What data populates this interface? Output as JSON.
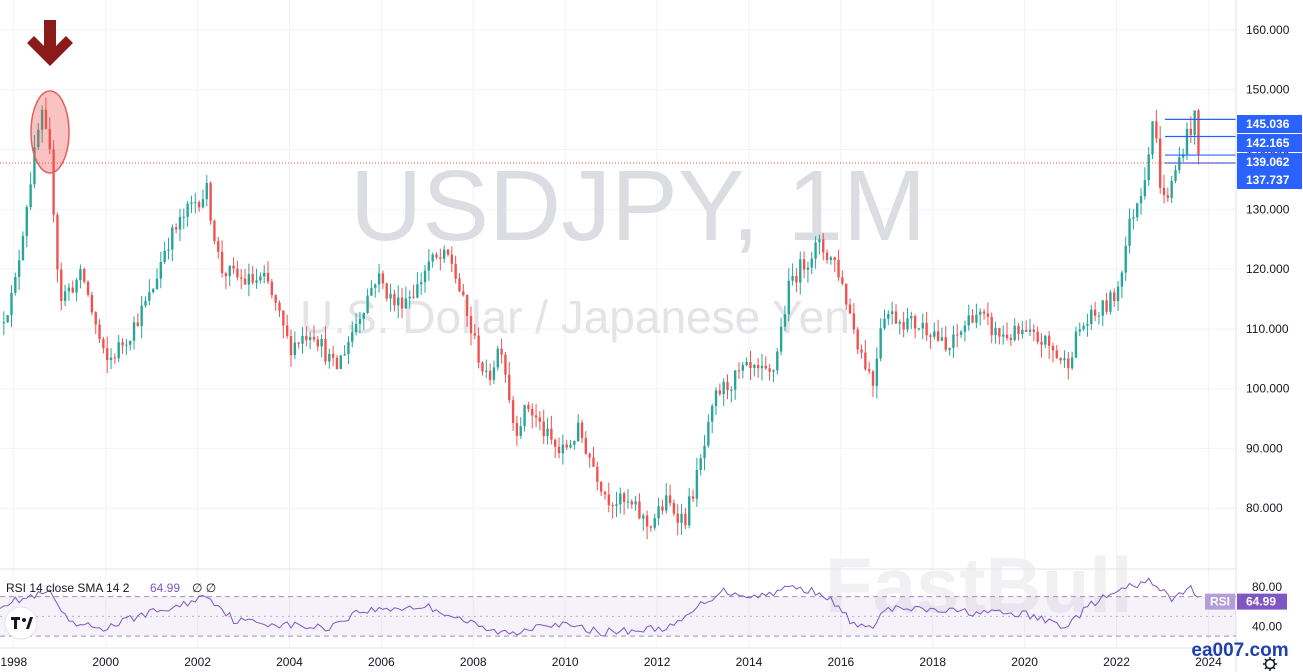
{
  "chart_data": {
    "type": "candlestick",
    "watermark": {
      "symbol": "USDJPY, 1M",
      "description": "U.S. Dollar / Japanese Yen",
      "brand": "FastBull"
    },
    "x_ticks": [
      "1998",
      "2000",
      "2002",
      "2004",
      "2006",
      "2008",
      "2010",
      "2012",
      "2014",
      "2016",
      "2018",
      "2020",
      "2022",
      "2024"
    ],
    "y_ticks": [
      "80.000",
      "90.000",
      "100.000",
      "110.000",
      "120.000",
      "130.000",
      "140.000",
      "150.000",
      "160.000"
    ],
    "y_range": [
      70,
      165
    ],
    "x_range": [
      1997.7,
      2024.6
    ],
    "price_tags": [
      {
        "label": "145.036",
        "value": 145.036
      },
      {
        "label": "142.165",
        "value": 142.165
      },
      {
        "label": "139.062",
        "value": 139.062
      },
      {
        "label": "137.737",
        "value": 137.737
      }
    ],
    "last_price": 137.737,
    "colors": {
      "up": "#26a69a",
      "down": "#ef5350",
      "marker": "#8b1a1a",
      "tag": "#2962ff",
      "rsi": "#7e57c2"
    },
    "anchors": [
      [
        1997.7,
        111
      ],
      [
        1998.0,
        116
      ],
      [
        1998.3,
        132
      ],
      [
        1998.6,
        146
      ],
      [
        1998.8,
        138
      ],
      [
        1999.0,
        115
      ],
      [
        1999.5,
        119
      ],
      [
        2000.0,
        104
      ],
      [
        2000.5,
        109
      ],
      [
        2001.0,
        116
      ],
      [
        2001.3,
        124
      ],
      [
        2001.9,
        131
      ],
      [
        2002.2,
        133
      ],
      [
        2002.5,
        120
      ],
      [
        2003.0,
        118
      ],
      [
        2003.5,
        118
      ],
      [
        2004.0,
        107
      ],
      [
        2004.5,
        110
      ],
      [
        2005.0,
        103
      ],
      [
        2005.5,
        112
      ],
      [
        2005.9,
        119
      ],
      [
        2006.3,
        114
      ],
      [
        2006.8,
        117
      ],
      [
        2007.0,
        121
      ],
      [
        2007.5,
        122
      ],
      [
        2007.9,
        111
      ],
      [
        2008.3,
        101
      ],
      [
        2008.6,
        108
      ],
      [
        2008.9,
        93
      ],
      [
        2009.2,
        97
      ],
      [
        2009.6,
        92
      ],
      [
        2009.9,
        89
      ],
      [
        2010.3,
        93
      ],
      [
        2010.9,
        82
      ],
      [
        2011.5,
        80
      ],
      [
        2011.8,
        77
      ],
      [
        2012.2,
        81
      ],
      [
        2012.6,
        78
      ],
      [
        2012.9,
        86
      ],
      [
        2013.3,
        99
      ],
      [
        2013.9,
        103
      ],
      [
        2014.5,
        102
      ],
      [
        2014.9,
        118
      ],
      [
        2015.5,
        124
      ],
      [
        2015.9,
        121
      ],
      [
        2016.4,
        107
      ],
      [
        2016.7,
        101
      ],
      [
        2016.9,
        113
      ],
      [
        2017.5,
        111
      ],
      [
        2018.0,
        110
      ],
      [
        2018.3,
        106
      ],
      [
        2018.9,
        113
      ],
      [
        2019.4,
        109
      ],
      [
        2019.9,
        109
      ],
      [
        2020.4,
        108
      ],
      [
        2020.9,
        104
      ],
      [
        2021.2,
        110
      ],
      [
        2021.8,
        114
      ],
      [
        2022.0,
        116
      ],
      [
        2022.3,
        128
      ],
      [
        2022.6,
        135
      ],
      [
        2022.8,
        146
      ],
      [
        2023.0,
        131
      ],
      [
        2023.2,
        134
      ],
      [
        2023.5,
        142
      ],
      [
        2023.7,
        145
      ],
      [
        2023.8,
        138
      ]
    ],
    "rsi": {
      "legend": "RSI 14 close SMA 14 2",
      "value": 64.99,
      "value_label": "64.99",
      "extra": "∅ ∅",
      "tag_label": "RSI",
      "y_ticks": [
        "80.00",
        "40.00"
      ],
      "levels": [
        70,
        30
      ],
      "range": [
        20,
        95
      ],
      "anchors": [
        [
          1997.7,
          62
        ],
        [
          1998.4,
          70
        ],
        [
          1998.8,
          74
        ],
        [
          1999.2,
          42
        ],
        [
          2000.0,
          38
        ],
        [
          2000.8,
          52
        ],
        [
          2001.6,
          60
        ],
        [
          2002.2,
          72
        ],
        [
          2002.8,
          46
        ],
        [
          2003.8,
          42
        ],
        [
          2004.8,
          38
        ],
        [
          2005.5,
          55
        ],
        [
          2006.2,
          58
        ],
        [
          2007.0,
          60
        ],
        [
          2007.6,
          50
        ],
        [
          2008.3,
          36
        ],
        [
          2008.9,
          32
        ],
        [
          2009.5,
          44
        ],
        [
          2010.1,
          40
        ],
        [
          2010.8,
          34
        ],
        [
          2011.6,
          36
        ],
        [
          2012.4,
          40
        ],
        [
          2012.9,
          60
        ],
        [
          2013.4,
          76
        ],
        [
          2014.2,
          70
        ],
        [
          2014.9,
          80
        ],
        [
          2015.6,
          74
        ],
        [
          2016.3,
          42
        ],
        [
          2016.6,
          36
        ],
        [
          2017.0,
          58
        ],
        [
          2018.0,
          56
        ],
        [
          2019.0,
          54
        ],
        [
          2020.0,
          52
        ],
        [
          2020.9,
          40
        ],
        [
          2021.5,
          64
        ],
        [
          2022.3,
          80
        ],
        [
          2022.8,
          86
        ],
        [
          2023.2,
          66
        ],
        [
          2023.6,
          80
        ],
        [
          2023.8,
          65
        ]
      ]
    }
  },
  "branding": {
    "site": "ea007.com"
  }
}
